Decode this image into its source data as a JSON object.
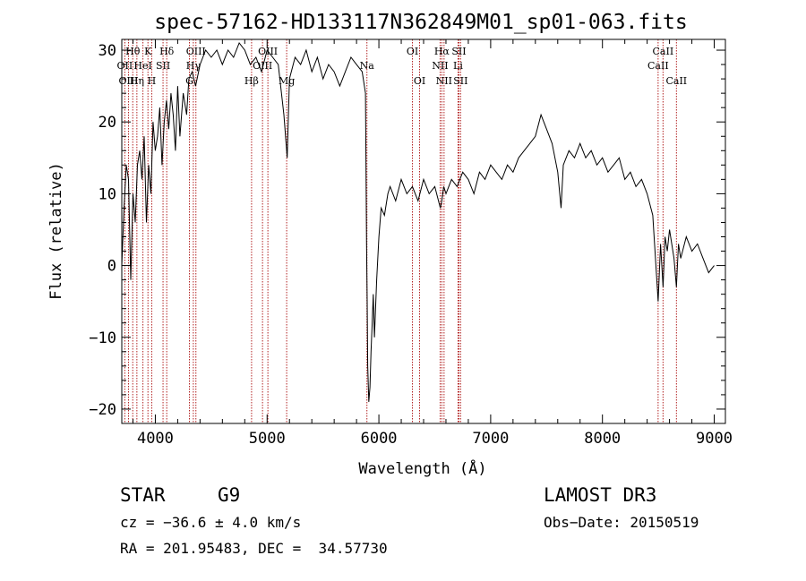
{
  "chart_data": {
    "type": "line",
    "title": "spec-57162-HD133117N362849M01_sp01-063.fits",
    "xlabel": "Wavelength (Å)",
    "ylabel": "Flux (relative)",
    "xlim": [
      3700,
      9100
    ],
    "ylim": [
      -22,
      31.5
    ],
    "xticks": [
      4000,
      5000,
      6000,
      7000,
      8000,
      9000
    ],
    "yticks": [
      -20,
      -10,
      0,
      10,
      20,
      30
    ],
    "grid": false,
    "series": [
      {
        "x": [
          3700,
          3720,
          3740,
          3760,
          3780,
          3800,
          3820,
          3840,
          3860,
          3880,
          3900,
          3920,
          3940,
          3960,
          3980,
          4000,
          4020,
          4040,
          4060,
          4080,
          4100,
          4120,
          4140,
          4160,
          4180,
          4200,
          4220,
          4250,
          4280,
          4300,
          4330,
          4360,
          4400,
          4450,
          4500,
          4550,
          4600,
          4650,
          4700,
          4750,
          4800,
          4850,
          4900,
          4950,
          5000,
          5050,
          5100,
          5150,
          5180,
          5200,
          5250,
          5300,
          5350,
          5400,
          5450,
          5500,
          5550,
          5600,
          5650,
          5700,
          5750,
          5800,
          5850,
          5880,
          5890,
          5895,
          5900,
          5910,
          5920,
          5930,
          5940,
          5950,
          5960,
          5980,
          6000,
          6020,
          6050,
          6080,
          6100,
          6150,
          6200,
          6250,
          6300,
          6350,
          6400,
          6450,
          6500,
          6550,
          6563,
          6580,
          6600,
          6650,
          6700,
          6750,
          6800,
          6850,
          6900,
          6950,
          7000,
          7050,
          7100,
          7150,
          7200,
          7250,
          7300,
          7350,
          7400,
          7450,
          7500,
          7550,
          7600,
          7630,
          7650,
          7700,
          7750,
          7800,
          7850,
          7900,
          7950,
          8000,
          8050,
          8100,
          8150,
          8200,
          8250,
          8300,
          8350,
          8400,
          8450,
          8498,
          8520,
          8542,
          8560,
          8580,
          8600,
          8640,
          8662,
          8680,
          8700,
          8750,
          8800,
          8850,
          8900,
          8950,
          9000
        ],
        "values": [
          0,
          8,
          14,
          12,
          -2,
          10,
          6,
          14,
          16,
          12,
          18,
          6,
          14,
          10,
          20,
          16,
          18,
          22,
          14,
          20,
          23,
          19,
          24,
          21,
          16,
          25,
          18,
          24,
          21,
          26,
          27,
          25,
          28,
          30,
          29,
          30,
          28,
          30,
          29,
          31,
          30,
          28,
          29,
          27,
          30,
          29,
          28,
          21,
          15,
          26,
          29,
          28,
          30,
          27,
          29,
          26,
          28,
          27,
          25,
          27,
          29,
          28,
          27,
          24,
          3,
          -5,
          -14,
          -19,
          -17,
          -12,
          -8,
          -4,
          -10,
          -2,
          4,
          8,
          7,
          10,
          11,
          9,
          12,
          10,
          11,
          9,
          12,
          10,
          11,
          8,
          9,
          11,
          10,
          12,
          11,
          13,
          12,
          10,
          13,
          12,
          14,
          13,
          12,
          14,
          13,
          15,
          16,
          17,
          18,
          21,
          19,
          17,
          13,
          8,
          14,
          16,
          15,
          17,
          15,
          16,
          14,
          15,
          13,
          14,
          15,
          12,
          13,
          11,
          12,
          10,
          7,
          -5,
          3,
          -3,
          4,
          2,
          5,
          1,
          -3,
          3,
          1,
          4,
          2,
          3,
          1,
          -1,
          0
        ]
      }
    ],
    "line_labels": [
      {
        "label": "Hθ",
        "x": 3798,
        "row": 1
      },
      {
        "label": "OII",
        "x": 3727,
        "row": 2
      },
      {
        "label": "OIII",
        "x": 3760,
        "row": 3
      },
      {
        "label": "K",
        "x": 3934,
        "row": 1
      },
      {
        "label": "HeI",
        "x": 3889,
        "row": 2
      },
      {
        "label": "Hη",
        "x": 3835,
        "row": 3
      },
      {
        "label": "SII",
        "x": 4069,
        "row": 2
      },
      {
        "label": "H",
        "x": 3968,
        "row": 3
      },
      {
        "label": "Hδ",
        "x": 4102,
        "row": 1
      },
      {
        "label": "OIII",
        "x": 4363,
        "row": 1
      },
      {
        "label": "Hγ",
        "x": 4340,
        "row": 2
      },
      {
        "label": "G",
        "x": 4305,
        "row": 3
      },
      {
        "label": "OIII",
        "x": 5007,
        "row": 1
      },
      {
        "label": "OIII",
        "x": 4959,
        "row": 2
      },
      {
        "label": "Hβ",
        "x": 4861,
        "row": 3
      },
      {
        "label": "Mg",
        "x": 5175,
        "row": 3
      },
      {
        "label": "Na",
        "x": 5893,
        "row": 2
      },
      {
        "label": "OI",
        "x": 6300,
        "row": 1
      },
      {
        "label": "OI",
        "x": 6364,
        "row": 3
      },
      {
        "label": "Hα",
        "x": 6563,
        "row": 1
      },
      {
        "label": "NII",
        "x": 6548,
        "row": 2
      },
      {
        "label": "NII",
        "x": 6583,
        "row": 3
      },
      {
        "label": "SII",
        "x": 6716,
        "row": 1
      },
      {
        "label": "Li",
        "x": 6708,
        "row": 2
      },
      {
        "label": "SII",
        "x": 6731,
        "row": 3
      },
      {
        "label": "CaII",
        "x": 8542,
        "row": 1
      },
      {
        "label": "CaII",
        "x": 8498,
        "row": 2
      },
      {
        "label": "CaII",
        "x": 8662,
        "row": 3
      }
    ]
  },
  "info": {
    "class_label": "STAR",
    "subclass": "G9",
    "survey": "LAMOST DR3",
    "cz": "cz = −36.6 ± 4.0 km/s",
    "obs_date": "Obs−Date: 20150519",
    "coords": "RA = 201.95483, DEC =  34.57730"
  }
}
